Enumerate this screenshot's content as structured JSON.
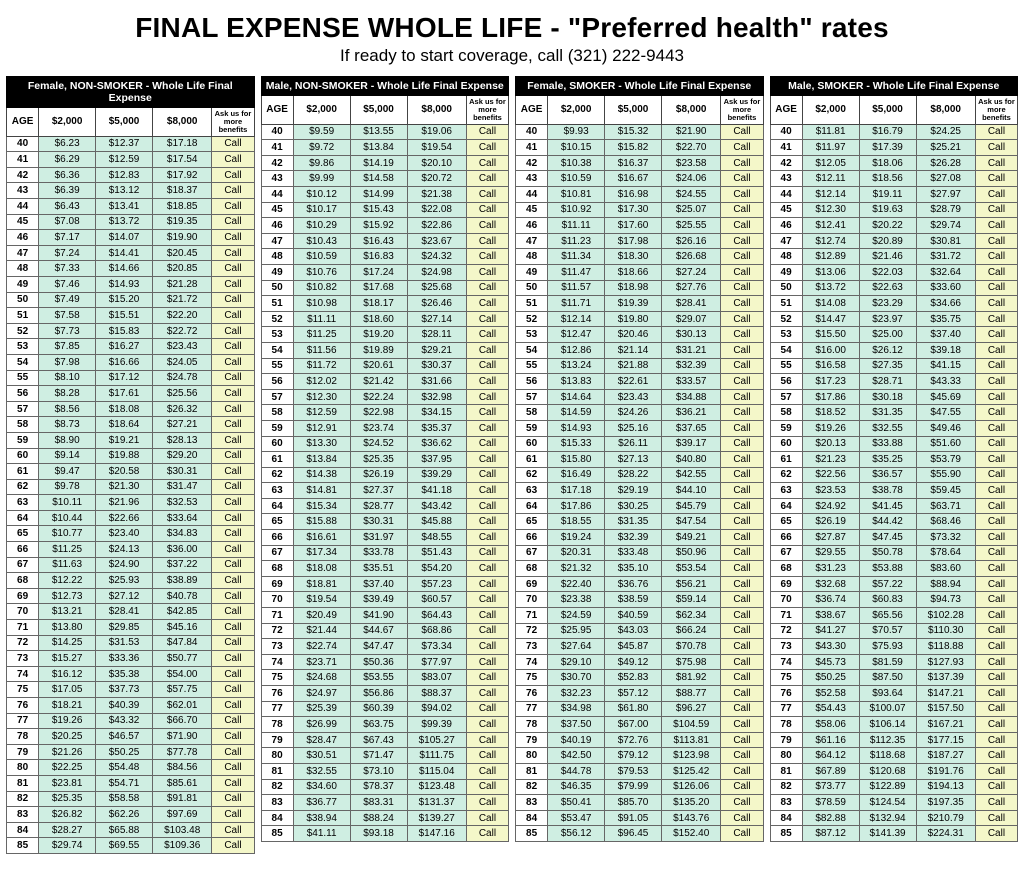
{
  "title": "FINAL EXPENSE WHOLE LIFE - \"Preferred health\" rates",
  "subtitle": "If ready to start coverage, call (321) 222-9443",
  "columns": {
    "age": "AGE",
    "c2000": "$2,000",
    "c5000": "$5,000",
    "c8000": "$8,000",
    "ask_line1": "Ask us for",
    "ask_line2": "more benefits"
  },
  "call_label": "Call",
  "colors": {
    "header_bg": "#000000",
    "header_fg": "#ffffff",
    "value_bg": "#cfeee2",
    "call_bg": "#f4f7c9",
    "border": "#444444"
  },
  "ages": [
    40,
    41,
    42,
    43,
    44,
    45,
    46,
    47,
    48,
    49,
    50,
    51,
    52,
    53,
    54,
    55,
    56,
    57,
    58,
    59,
    60,
    61,
    62,
    63,
    64,
    65,
    66,
    67,
    68,
    69,
    70,
    71,
    72,
    73,
    74,
    75,
    76,
    77,
    78,
    79,
    80,
    81,
    82,
    83,
    84,
    85
  ],
  "panels": [
    {
      "name": "female-nonsmoker",
      "title": "Female, NON-SMOKER - Whole Life Final Expense",
      "rows": [
        [
          "$6.23",
          "$12.37",
          "$17.18"
        ],
        [
          "$6.29",
          "$12.59",
          "$17.54"
        ],
        [
          "$6.36",
          "$12.83",
          "$17.92"
        ],
        [
          "$6.39",
          "$13.12",
          "$18.37"
        ],
        [
          "$6.43",
          "$13.41",
          "$18.85"
        ],
        [
          "$7.08",
          "$13.72",
          "$19.35"
        ],
        [
          "$7.17",
          "$14.07",
          "$19.90"
        ],
        [
          "$7.24",
          "$14.41",
          "$20.45"
        ],
        [
          "$7.33",
          "$14.66",
          "$20.85"
        ],
        [
          "$7.46",
          "$14.93",
          "$21.28"
        ],
        [
          "$7.49",
          "$15.20",
          "$21.72"
        ],
        [
          "$7.58",
          "$15.51",
          "$22.20"
        ],
        [
          "$7.73",
          "$15.83",
          "$22.72"
        ],
        [
          "$7.85",
          "$16.27",
          "$23.43"
        ],
        [
          "$7.98",
          "$16.66",
          "$24.05"
        ],
        [
          "$8.10",
          "$17.12",
          "$24.78"
        ],
        [
          "$8.28",
          "$17.61",
          "$25.56"
        ],
        [
          "$8.56",
          "$18.08",
          "$26.32"
        ],
        [
          "$8.73",
          "$18.64",
          "$27.21"
        ],
        [
          "$8.90",
          "$19.21",
          "$28.13"
        ],
        [
          "$9.14",
          "$19.88",
          "$29.20"
        ],
        [
          "$9.47",
          "$20.58",
          "$30.31"
        ],
        [
          "$9.78",
          "$21.30",
          "$31.47"
        ],
        [
          "$10.11",
          "$21.96",
          "$32.53"
        ],
        [
          "$10.44",
          "$22.66",
          "$33.64"
        ],
        [
          "$10.77",
          "$23.40",
          "$34.83"
        ],
        [
          "$11.25",
          "$24.13",
          "$36.00"
        ],
        [
          "$11.63",
          "$24.90",
          "$37.22"
        ],
        [
          "$12.22",
          "$25.93",
          "$38.89"
        ],
        [
          "$12.73",
          "$27.12",
          "$40.78"
        ],
        [
          "$13.21",
          "$28.41",
          "$42.85"
        ],
        [
          "$13.80",
          "$29.85",
          "$45.16"
        ],
        [
          "$14.25",
          "$31.53",
          "$47.84"
        ],
        [
          "$15.27",
          "$33.36",
          "$50.77"
        ],
        [
          "$16.12",
          "$35.38",
          "$54.00"
        ],
        [
          "$17.05",
          "$37.73",
          "$57.75"
        ],
        [
          "$18.21",
          "$40.39",
          "$62.01"
        ],
        [
          "$19.26",
          "$43.32",
          "$66.70"
        ],
        [
          "$20.25",
          "$46.57",
          "$71.90"
        ],
        [
          "$21.26",
          "$50.25",
          "$77.78"
        ],
        [
          "$22.25",
          "$54.48",
          "$84.56"
        ],
        [
          "$23.81",
          "$54.71",
          "$85.61"
        ],
        [
          "$25.35",
          "$58.58",
          "$91.81"
        ],
        [
          "$26.82",
          "$62.26",
          "$97.69"
        ],
        [
          "$28.27",
          "$65.88",
          "$103.48"
        ],
        [
          "$29.74",
          "$69.55",
          "$109.36"
        ]
      ]
    },
    {
      "name": "male-nonsmoker",
      "title": "Male, NON-SMOKER - Whole Life Final Expense",
      "rows": [
        [
          "$9.59",
          "$13.55",
          "$19.06"
        ],
        [
          "$9.72",
          "$13.84",
          "$19.54"
        ],
        [
          "$9.86",
          "$14.19",
          "$20.10"
        ],
        [
          "$9.99",
          "$14.58",
          "$20.72"
        ],
        [
          "$10.12",
          "$14.99",
          "$21.38"
        ],
        [
          "$10.17",
          "$15.43",
          "$22.08"
        ],
        [
          "$10.29",
          "$15.92",
          "$22.86"
        ],
        [
          "$10.43",
          "$16.43",
          "$23.67"
        ],
        [
          "$10.59",
          "$16.83",
          "$24.32"
        ],
        [
          "$10.76",
          "$17.24",
          "$24.98"
        ],
        [
          "$10.82",
          "$17.68",
          "$25.68"
        ],
        [
          "$10.98",
          "$18.17",
          "$26.46"
        ],
        [
          "$11.11",
          "$18.60",
          "$27.14"
        ],
        [
          "$11.25",
          "$19.20",
          "$28.11"
        ],
        [
          "$11.56",
          "$19.89",
          "$29.21"
        ],
        [
          "$11.72",
          "$20.61",
          "$30.37"
        ],
        [
          "$12.02",
          "$21.42",
          "$31.66"
        ],
        [
          "$12.30",
          "$22.24",
          "$32.98"
        ],
        [
          "$12.59",
          "$22.98",
          "$34.15"
        ],
        [
          "$12.91",
          "$23.74",
          "$35.37"
        ],
        [
          "$13.30",
          "$24.52",
          "$36.62"
        ],
        [
          "$13.84",
          "$25.35",
          "$37.95"
        ],
        [
          "$14.38",
          "$26.19",
          "$39.29"
        ],
        [
          "$14.81",
          "$27.37",
          "$41.18"
        ],
        [
          "$15.34",
          "$28.77",
          "$43.42"
        ],
        [
          "$15.88",
          "$30.31",
          "$45.88"
        ],
        [
          "$16.61",
          "$31.97",
          "$48.55"
        ],
        [
          "$17.34",
          "$33.78",
          "$51.43"
        ],
        [
          "$18.08",
          "$35.51",
          "$54.20"
        ],
        [
          "$18.81",
          "$37.40",
          "$57.23"
        ],
        [
          "$19.54",
          "$39.49",
          "$60.57"
        ],
        [
          "$20.49",
          "$41.90",
          "$64.43"
        ],
        [
          "$21.44",
          "$44.67",
          "$68.86"
        ],
        [
          "$22.74",
          "$47.47",
          "$73.34"
        ],
        [
          "$23.71",
          "$50.36",
          "$77.97"
        ],
        [
          "$24.68",
          "$53.55",
          "$83.07"
        ],
        [
          "$24.97",
          "$56.86",
          "$88.37"
        ],
        [
          "$25.39",
          "$60.39",
          "$94.02"
        ],
        [
          "$26.99",
          "$63.75",
          "$99.39"
        ],
        [
          "$28.47",
          "$67.43",
          "$105.27"
        ],
        [
          "$30.51",
          "$71.47",
          "$111.75"
        ],
        [
          "$32.55",
          "$73.10",
          "$115.04"
        ],
        [
          "$34.60",
          "$78.37",
          "$123.48"
        ],
        [
          "$36.77",
          "$83.31",
          "$131.37"
        ],
        [
          "$38.94",
          "$88.24",
          "$139.27"
        ],
        [
          "$41.11",
          "$93.18",
          "$147.16"
        ]
      ]
    },
    {
      "name": "female-smoker",
      "title": "Female, SMOKER - Whole Life Final Expense",
      "rows": [
        [
          "$9.93",
          "$15.32",
          "$21.90"
        ],
        [
          "$10.15",
          "$15.82",
          "$22.70"
        ],
        [
          "$10.38",
          "$16.37",
          "$23.58"
        ],
        [
          "$10.59",
          "$16.67",
          "$24.06"
        ],
        [
          "$10.81",
          "$16.98",
          "$24.55"
        ],
        [
          "$10.92",
          "$17.30",
          "$25.07"
        ],
        [
          "$11.11",
          "$17.60",
          "$25.55"
        ],
        [
          "$11.23",
          "$17.98",
          "$26.16"
        ],
        [
          "$11.34",
          "$18.30",
          "$26.68"
        ],
        [
          "$11.47",
          "$18.66",
          "$27.24"
        ],
        [
          "$11.57",
          "$18.98",
          "$27.76"
        ],
        [
          "$11.71",
          "$19.39",
          "$28.41"
        ],
        [
          "$12.14",
          "$19.80",
          "$29.07"
        ],
        [
          "$12.47",
          "$20.46",
          "$30.13"
        ],
        [
          "$12.86",
          "$21.14",
          "$31.21"
        ],
        [
          "$13.24",
          "$21.88",
          "$32.39"
        ],
        [
          "$13.83",
          "$22.61",
          "$33.57"
        ],
        [
          "$14.64",
          "$23.43",
          "$34.88"
        ],
        [
          "$14.59",
          "$24.26",
          "$36.21"
        ],
        [
          "$14.93",
          "$25.16",
          "$37.65"
        ],
        [
          "$15.33",
          "$26.11",
          "$39.17"
        ],
        [
          "$15.80",
          "$27.13",
          "$40.80"
        ],
        [
          "$16.49",
          "$28.22",
          "$42.55"
        ],
        [
          "$17.18",
          "$29.19",
          "$44.10"
        ],
        [
          "$17.86",
          "$30.25",
          "$45.79"
        ],
        [
          "$18.55",
          "$31.35",
          "$47.54"
        ],
        [
          "$19.24",
          "$32.39",
          "$49.21"
        ],
        [
          "$20.31",
          "$33.48",
          "$50.96"
        ],
        [
          "$21.32",
          "$35.10",
          "$53.54"
        ],
        [
          "$22.40",
          "$36.76",
          "$56.21"
        ],
        [
          "$23.38",
          "$38.59",
          "$59.14"
        ],
        [
          "$24.59",
          "$40.59",
          "$62.34"
        ],
        [
          "$25.95",
          "$43.03",
          "$66.24"
        ],
        [
          "$27.64",
          "$45.87",
          "$70.78"
        ],
        [
          "$29.10",
          "$49.12",
          "$75.98"
        ],
        [
          "$30.70",
          "$52.83",
          "$81.92"
        ],
        [
          "$32.23",
          "$57.12",
          "$88.77"
        ],
        [
          "$34.98",
          "$61.80",
          "$96.27"
        ],
        [
          "$37.50",
          "$67.00",
          "$104.59"
        ],
        [
          "$40.19",
          "$72.76",
          "$113.81"
        ],
        [
          "$42.50",
          "$79.12",
          "$123.98"
        ],
        [
          "$44.78",
          "$79.53",
          "$125.42"
        ],
        [
          "$46.35",
          "$79.99",
          "$126.06"
        ],
        [
          "$50.41",
          "$85.70",
          "$135.20"
        ],
        [
          "$53.47",
          "$91.05",
          "$143.76"
        ],
        [
          "$56.12",
          "$96.45",
          "$152.40"
        ]
      ]
    },
    {
      "name": "male-smoker",
      "title": "Male, SMOKER - Whole Life Final Expense",
      "rows": [
        [
          "$11.81",
          "$16.79",
          "$24.25"
        ],
        [
          "$11.97",
          "$17.39",
          "$25.21"
        ],
        [
          "$12.05",
          "$18.06",
          "$26.28"
        ],
        [
          "$12.11",
          "$18.56",
          "$27.08"
        ],
        [
          "$12.14",
          "$19.11",
          "$27.97"
        ],
        [
          "$12.30",
          "$19.63",
          "$28.79"
        ],
        [
          "$12.41",
          "$20.22",
          "$29.74"
        ],
        [
          "$12.74",
          "$20.89",
          "$30.81"
        ],
        [
          "$12.89",
          "$21.46",
          "$31.72"
        ],
        [
          "$13.06",
          "$22.03",
          "$32.64"
        ],
        [
          "$13.72",
          "$22.63",
          "$33.60"
        ],
        [
          "$14.08",
          "$23.29",
          "$34.66"
        ],
        [
          "$14.47",
          "$23.97",
          "$35.75"
        ],
        [
          "$15.50",
          "$25.00",
          "$37.40"
        ],
        [
          "$16.00",
          "$26.12",
          "$39.18"
        ],
        [
          "$16.58",
          "$27.35",
          "$41.15"
        ],
        [
          "$17.23",
          "$28.71",
          "$43.33"
        ],
        [
          "$17.86",
          "$30.18",
          "$45.69"
        ],
        [
          "$18.52",
          "$31.35",
          "$47.55"
        ],
        [
          "$19.26",
          "$32.55",
          "$49.46"
        ],
        [
          "$20.13",
          "$33.88",
          "$51.60"
        ],
        [
          "$21.23",
          "$35.25",
          "$53.79"
        ],
        [
          "$22.56",
          "$36.57",
          "$55.90"
        ],
        [
          "$23.53",
          "$38.78",
          "$59.45"
        ],
        [
          "$24.92",
          "$41.45",
          "$63.71"
        ],
        [
          "$26.19",
          "$44.42",
          "$68.46"
        ],
        [
          "$27.87",
          "$47.45",
          "$73.32"
        ],
        [
          "$29.55",
          "$50.78",
          "$78.64"
        ],
        [
          "$31.23",
          "$53.88",
          "$83.60"
        ],
        [
          "$32.68",
          "$57.22",
          "$88.94"
        ],
        [
          "$36.74",
          "$60.83",
          "$94.73"
        ],
        [
          "$38.67",
          "$65.56",
          "$102.28"
        ],
        [
          "$41.27",
          "$70.57",
          "$110.30"
        ],
        [
          "$43.30",
          "$75.93",
          "$118.88"
        ],
        [
          "$45.73",
          "$81.59",
          "$127.93"
        ],
        [
          "$50.25",
          "$87.50",
          "$137.39"
        ],
        [
          "$52.58",
          "$93.64",
          "$147.21"
        ],
        [
          "$54.43",
          "$100.07",
          "$157.50"
        ],
        [
          "$58.06",
          "$106.14",
          "$167.21"
        ],
        [
          "$61.16",
          "$112.35",
          "$177.15"
        ],
        [
          "$64.12",
          "$118.68",
          "$187.27"
        ],
        [
          "$67.89",
          "$120.68",
          "$191.76"
        ],
        [
          "$73.77",
          "$122.89",
          "$194.13"
        ],
        [
          "$78.59",
          "$124.54",
          "$197.35"
        ],
        [
          "$82.88",
          "$132.94",
          "$210.79"
        ],
        [
          "$87.12",
          "$141.39",
          "$224.31"
        ]
      ]
    }
  ]
}
